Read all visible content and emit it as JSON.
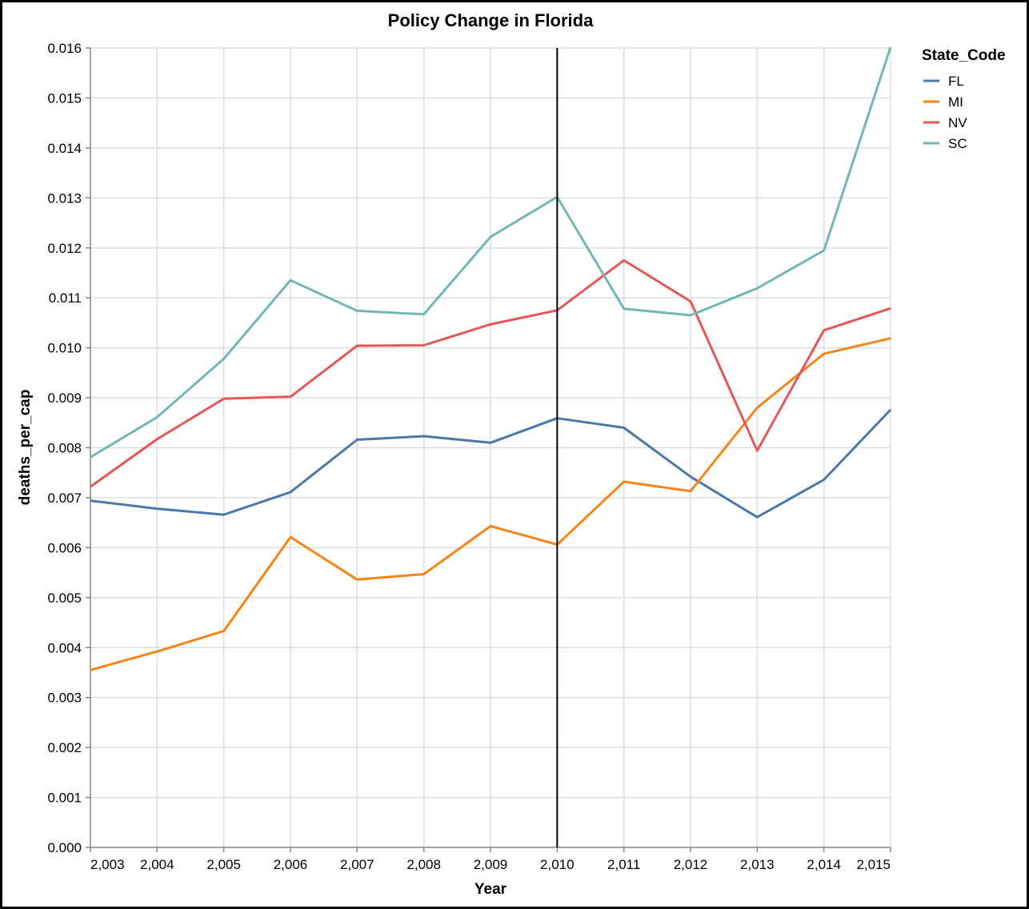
{
  "chart_data": {
    "type": "line",
    "title": "Policy Change in Florida",
    "xlabel": "Year",
    "ylabel": "deaths_per_cap",
    "x": [
      2003,
      2004,
      2005,
      2006,
      2007,
      2008,
      2009,
      2010,
      2011,
      2012,
      2013,
      2014,
      2015
    ],
    "x_tick_labels": [
      "2,003",
      "2,004",
      "2,005",
      "2,006",
      "2,007",
      "2,008",
      "2,009",
      "2,010",
      "2,011",
      "2,012",
      "2,013",
      "2,014",
      "2,015"
    ],
    "xlim": [
      2003,
      2015
    ],
    "ylim": [
      0,
      0.016
    ],
    "y_ticks": [
      0,
      0.001,
      0.002,
      0.003,
      0.004,
      0.005,
      0.006,
      0.007,
      0.008,
      0.009,
      0.01,
      0.011,
      0.012,
      0.013,
      0.014,
      0.015,
      0.016
    ],
    "y_tick_labels": [
      "0.000",
      "0.001",
      "0.002",
      "0.003",
      "0.004",
      "0.005",
      "0.006",
      "0.007",
      "0.008",
      "0.009",
      "0.010",
      "0.011",
      "0.012",
      "0.013",
      "0.014",
      "0.015",
      "0.016"
    ],
    "grid": true,
    "legend_title": "State_Code",
    "legend_position": "right",
    "reference_line": {
      "x": 2010,
      "color": "#000000"
    },
    "series": [
      {
        "name": "FL",
        "color": "#4c78a8",
        "values": [
          0.00694,
          0.00678,
          0.00666,
          0.00711,
          0.00816,
          0.00823,
          0.0081,
          0.00859,
          0.0084,
          0.00742,
          0.00661,
          0.00736,
          0.00876
        ]
      },
      {
        "name": "MI",
        "color": "#f58518",
        "values": [
          0.00355,
          0.00392,
          0.00433,
          0.00621,
          0.00536,
          0.00547,
          0.00643,
          0.00606,
          0.00732,
          0.00713,
          0.0088,
          0.00988,
          0.01019
        ]
      },
      {
        "name": "NV",
        "color": "#e45756",
        "values": [
          0.00722,
          0.00817,
          0.00898,
          0.00902,
          0.01004,
          0.01005,
          0.01047,
          0.01075,
          0.01175,
          0.01093,
          0.00794,
          0.01035,
          0.01079
        ]
      },
      {
        "name": "SC",
        "color": "#72b7b2",
        "values": [
          0.00781,
          0.00861,
          0.00978,
          0.01135,
          0.01074,
          0.01067,
          0.01222,
          0.01302,
          0.01078,
          0.01065,
          0.01119,
          0.01195,
          0.01602
        ]
      }
    ]
  }
}
